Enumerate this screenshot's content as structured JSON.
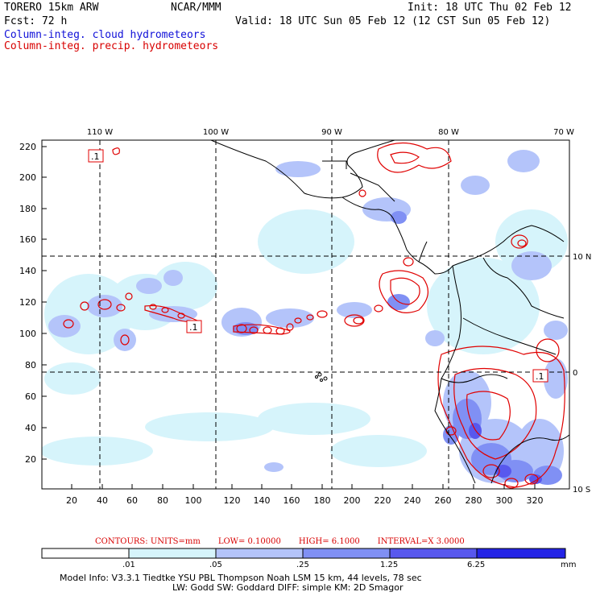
{
  "header": {
    "model": "TORERO  15km ARW",
    "center": "NCAR/MMM",
    "init": "Init: 18 UTC Thu 02 Feb 12",
    "fcst": "Fcst:   72 h",
    "valid": "Valid: 18 UTC Sun 05 Feb 12 (12 CST Sun 05 Feb 12)",
    "legend_cloud": "Column-integ. cloud hydrometeors",
    "legend_precip": "Column-integ. precip. hydrometeors"
  },
  "map": {
    "lon_labels": [
      "110 W",
      "100 W",
      "90 W",
      "80 W",
      "70 W"
    ],
    "lat_labels": [
      "10 N",
      "0",
      "10 S"
    ],
    "y_ticks": [
      "220",
      "200",
      "180",
      "160",
      "140",
      "120",
      "100",
      "80",
      "60",
      "40",
      "20"
    ],
    "x_ticks": [
      "20",
      "40",
      "60",
      "80",
      "100",
      "120",
      "140",
      "160",
      "180",
      "200",
      "220",
      "240",
      "260",
      "280",
      "300",
      "320"
    ],
    "box_labels": [
      ".1",
      ".1",
      ".1"
    ]
  },
  "contours": {
    "units": "CONTOURS:  UNITS=mm",
    "low": "LOW= 0.10000",
    "high": "HIGH=  6.1000",
    "interval": "INTERVAL=X  3.0000"
  },
  "colorbar": {
    "labels": [
      ".01",
      ".05",
      ".25",
      "1.25",
      "6.25"
    ],
    "unit": "mm",
    "colors": [
      "#ffffff",
      "#d6f4fb",
      "#b4c4fa",
      "#8090f4",
      "#5858ee",
      "#2424e6"
    ]
  },
  "footer": {
    "line1": "Model Info: V3.3.1    Tiedtke YSU PBL   Thompson     Noah LSM  15 km,    44 levels,    78 sec",
    "line2": "LW: Godd SW: Goddard DIFF: simple KM: 2D Smagor"
  }
}
